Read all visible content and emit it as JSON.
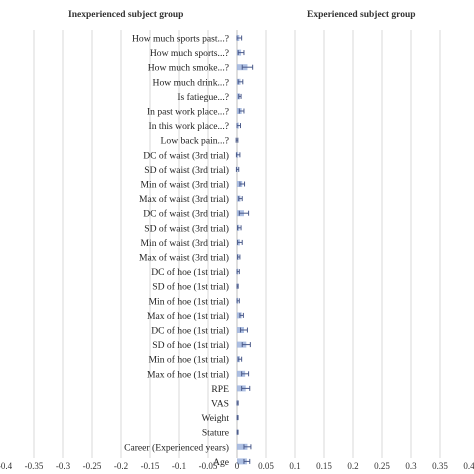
{
  "chart_data": {
    "type": "bar",
    "orientation": "horizontal",
    "panels": [
      {
        "title": "Inexperienced subject group"
      },
      {
        "title": "Experienced subject group"
      }
    ],
    "x_ticks": [
      "-0.4",
      "-0.35",
      "-0.3",
      "-0.25",
      "-0.2",
      "-0.15",
      "-0.1",
      "-0.05",
      "0",
      "0.05",
      "0.1",
      "0.15",
      "0.2",
      "0.25",
      "0.3",
      "0.35",
      "0.4"
    ],
    "xlim": [
      -0.4,
      0.4
    ],
    "grid": true,
    "bar_color": "#9fb4dd",
    "error_color": "#4a5a8a",
    "categories": [
      "How much sports past...?",
      "How much sports...?",
      "How much smoke...?",
      "How much drink...?",
      "Is fatiegue...?",
      "In past work place...?",
      "In this work place...?",
      "Low back pain...?",
      "DC of waist (3rd trial)",
      "SD of waist (3rd trial)",
      "Min of waist (3rd trial)",
      "Max of waist (3rd trial)",
      "DC of waist (3rd trial)",
      "SD of waist (3rd trial)",
      "Min of waist (3rd trial)",
      "Max of waist (3rd trial)",
      "DC of hoe (1st trial)",
      "SD of hoe (1st trial)",
      "Min of hoe (1st trial)",
      "Max of hoe (1st trial)",
      "DC of hoe (1st trial)",
      "SD of hoe (1st trial)",
      "Min of hoe (1st trial)",
      "Max of hoe (1st trial)",
      "RPE",
      "VAS",
      "Weight",
      "Stature",
      "Career (Experienced years)",
      "Age"
    ],
    "values": [
      0.004,
      0.007,
      0.018,
      0.006,
      0.005,
      0.008,
      0.003,
      0.0,
      0.002,
      0.001,
      0.009,
      0.006,
      0.012,
      0.004,
      0.005,
      0.003,
      0.002,
      0.001,
      0.002,
      0.008,
      0.012,
      0.016,
      0.005,
      0.014,
      0.015,
      0.001,
      0.001,
      0.001,
      0.018,
      0.017
    ],
    "errors": [
      0.004,
      0.005,
      0.009,
      0.004,
      0.002,
      0.004,
      0.003,
      0.0015,
      0.003,
      0.002,
      0.004,
      0.003,
      0.008,
      0.003,
      0.004,
      0.002,
      0.002,
      0.001,
      0.002,
      0.003,
      0.006,
      0.007,
      0.003,
      0.006,
      0.007,
      0.001,
      0.0008,
      0.0008,
      0.006,
      0.005
    ]
  }
}
